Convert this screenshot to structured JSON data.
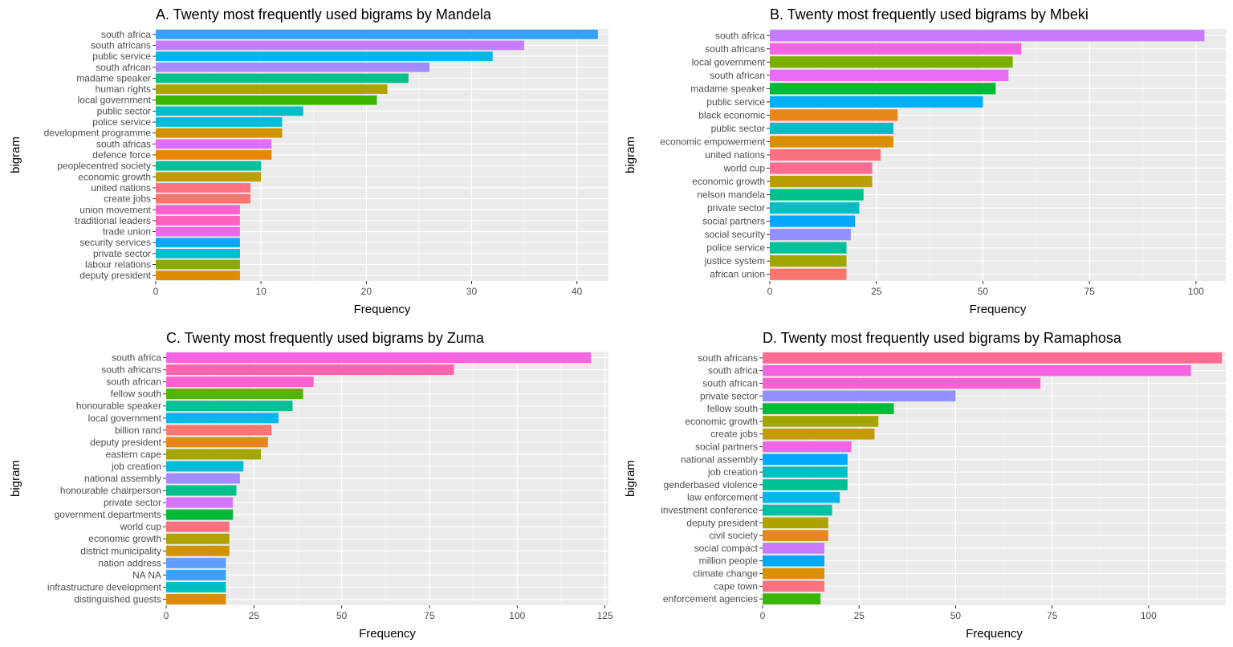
{
  "chart_data": [
    {
      "type": "bar",
      "orientation": "horizontal",
      "title": "A. Twenty most frequently used bigrams by Mandela",
      "xlabel": "Frequency",
      "ylabel": "bigram",
      "xlim": [
        0,
        43
      ],
      "xticks": [
        0,
        10,
        20,
        30,
        40
      ],
      "grid": true,
      "categories": [
        "south africa",
        "south africans",
        "public service",
        "south african",
        "madame speaker",
        "human rights",
        "local government",
        "public sector",
        "police service",
        "development programme",
        "south africas",
        "defence force",
        "peoplecentred society",
        "economic growth",
        "united nations",
        "create jobs",
        "union movement",
        "traditional leaders",
        "trade union",
        "security services",
        "private sector",
        "labour relations",
        "deputy president"
      ],
      "values": [
        42,
        35,
        32,
        26,
        24,
        22,
        21,
        14,
        12,
        12,
        11,
        11,
        10,
        10,
        9,
        9,
        8,
        8,
        8,
        8,
        8,
        8,
        8
      ],
      "colors": [
        "#35a2ff",
        "#c77cff",
        "#00b8e7",
        "#a58aff",
        "#00c08b",
        "#aea200",
        "#39b600",
        "#00bfc4",
        "#00bcd8",
        "#cf9400",
        "#e76bf3",
        "#e58700",
        "#00c19a",
        "#bb9d00",
        "#fc717f",
        "#f8766d",
        "#fd61d1",
        "#ff62bc",
        "#ed68ed",
        "#00a9ff",
        "#00bdd0",
        "#86ac00",
        "#de8c00"
      ]
    },
    {
      "type": "bar",
      "orientation": "horizontal",
      "title": "B. Twenty most frequently used bigrams by Mbeki",
      "xlabel": "Frequency",
      "ylabel": "bigram",
      "xlim": [
        0,
        107
      ],
      "xticks": [
        0,
        25,
        50,
        75,
        100
      ],
      "grid": true,
      "categories": [
        "south africa",
        "south africans",
        "local government",
        "south african",
        "madame speaker",
        "public service",
        "black economic",
        "public sector",
        "economic empowerment",
        "united nations",
        "world cup",
        "economic growth",
        "nelson mandela",
        "private sector",
        "social partners",
        "social security",
        "police service",
        "justice system",
        "african union"
      ],
      "values": [
        102,
        59,
        57,
        56,
        53,
        50,
        30,
        29,
        29,
        26,
        24,
        24,
        22,
        21,
        20,
        19,
        18,
        18,
        18
      ],
      "colors": [
        "#c77cff",
        "#f564e3",
        "#7cae00",
        "#e76bf3",
        "#00ba38",
        "#00b0f6",
        "#e7861b",
        "#00bfc4",
        "#d89000",
        "#fc717f",
        "#ff6c91",
        "#b79f00",
        "#00c08b",
        "#00bfc4",
        "#00a9ff",
        "#9590ff",
        "#00c19a",
        "#a3a500",
        "#f8766d"
      ]
    },
    {
      "type": "bar",
      "orientation": "horizontal",
      "title": "C. Twenty most frequently used bigrams by Zuma",
      "xlabel": "Frequency",
      "ylabel": "bigram",
      "xlim": [
        0,
        126
      ],
      "xticks": [
        0,
        25,
        50,
        75,
        100,
        125
      ],
      "grid": true,
      "categories": [
        "south africa",
        "south africans",
        "south african",
        "fellow south",
        "honourable speaker",
        "local government",
        "billion rand",
        "deputy president",
        "eastern cape",
        "job creation",
        "national assembly",
        "honourable chairperson",
        "private sector",
        "government departments",
        "world cup",
        "economic growth",
        "district municipality",
        "nation address",
        "NA NA",
        "infrastructure development",
        "distinguished guests"
      ],
      "values": [
        121,
        82,
        42,
        39,
        36,
        32,
        30,
        29,
        27,
        22,
        21,
        20,
        19,
        19,
        18,
        18,
        18,
        17,
        17,
        17,
        17
      ],
      "colors": [
        "#f564e3",
        "#ff65ac",
        "#fd61d1",
        "#53b400",
        "#00c094",
        "#00b6eb",
        "#f8766d",
        "#e7861b",
        "#a3a500",
        "#00bcd8",
        "#a58aff",
        "#00c08b",
        "#d575fe",
        "#00ba38",
        "#fc717f",
        "#aea200",
        "#cf9400",
        "#619cff",
        "#35a2ff",
        "#00bfc4",
        "#de8c00"
      ]
    },
    {
      "type": "bar",
      "orientation": "horizontal",
      "title": "D. Twenty most frequently used bigrams by Ramaphosa",
      "xlabel": "Frequency",
      "ylabel": "bigram",
      "xlim": [
        0,
        120
      ],
      "xticks": [
        0,
        25,
        50,
        75,
        100
      ],
      "grid": true,
      "categories": [
        "south africans",
        "south africa",
        "south african",
        "private sector",
        "fellow south",
        "economic growth",
        "create jobs",
        "social partners",
        "national assembly",
        "job creation",
        "genderbased violence",
        "law enforcement",
        "investment conference",
        "deputy president",
        "civil society",
        "social compact",
        "million people",
        "climate change",
        "cape town",
        "enforcement agencies"
      ],
      "values": [
        119,
        111,
        72,
        50,
        34,
        30,
        29,
        23,
        22,
        22,
        22,
        20,
        18,
        17,
        17,
        16,
        16,
        16,
        16,
        15
      ],
      "colors": [
        "#ff6c91",
        "#f564e3",
        "#fd61d1",
        "#9590ff",
        "#00ba38",
        "#a3a500",
        "#c49a00",
        "#f564e3",
        "#00a9ff",
        "#00bfc4",
        "#00c094",
        "#00b6eb",
        "#00c1a3",
        "#aea200",
        "#e7861b",
        "#c77cff",
        "#00a9ff",
        "#d89000",
        "#fc717f",
        "#39b600"
      ]
    }
  ]
}
